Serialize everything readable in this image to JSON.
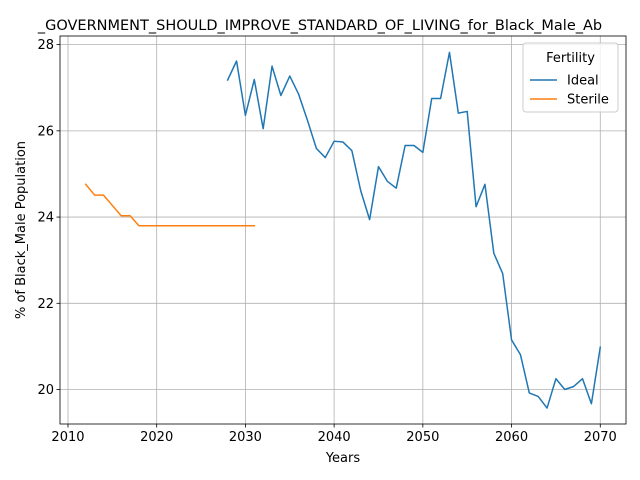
{
  "chart_data": {
    "type": "line",
    "title": "_GOVERNMENT_SHOULD_IMPROVE_STANDARD_OF_LIVING_for_Black_Male_Ab",
    "xlabel": "Years",
    "ylabel": "% of Black_Male Population",
    "xlim": [
      2009.1,
      2072.9
    ],
    "ylim": [
      19.2,
      28.2
    ],
    "xticks": [
      2010,
      2020,
      2030,
      2040,
      2050,
      2060,
      2070
    ],
    "yticks": [
      20,
      22,
      24,
      26,
      28
    ],
    "grid": true,
    "legend": {
      "title": "Fertility",
      "position": "top-right"
    },
    "series": [
      {
        "name": "Ideal",
        "color": "#1f77b4",
        "x": [
          2028,
          2029,
          2030,
          2031,
          2032,
          2033,
          2034,
          2035,
          2036,
          2037,
          2038,
          2039,
          2040,
          2041,
          2042,
          2043,
          2044,
          2045,
          2046,
          2047,
          2048,
          2049,
          2050,
          2051,
          2052,
          2053,
          2054,
          2055,
          2056,
          2057,
          2058,
          2059,
          2060,
          2061,
          2062,
          2063,
          2064,
          2065,
          2066,
          2067,
          2068,
          2069,
          2070
        ],
        "values": [
          27.18,
          27.62,
          26.36,
          27.19,
          26.05,
          27.5,
          26.82,
          27.27,
          26.85,
          26.24,
          25.59,
          25.38,
          25.76,
          25.74,
          25.54,
          24.61,
          23.94,
          25.17,
          24.83,
          24.67,
          25.66,
          25.66,
          25.5,
          26.75,
          26.75,
          27.82,
          26.41,
          26.45,
          24.24,
          24.76,
          23.16,
          22.69,
          21.15,
          20.81,
          19.92,
          19.84,
          19.57,
          20.25,
          20.0,
          20.07,
          20.25,
          19.67,
          20.98
        ]
      },
      {
        "name": "Sterile",
        "color": "#ff7f0e",
        "x": [
          2012,
          2013,
          2014,
          2015,
          2016,
          2017,
          2018,
          2019,
          2020,
          2021,
          2022,
          2023,
          2024,
          2025,
          2026,
          2027,
          2028,
          2029,
          2030,
          2031
        ],
        "values": [
          24.76,
          24.51,
          24.51,
          24.27,
          24.03,
          24.03,
          23.8,
          23.8,
          23.8,
          23.8,
          23.8,
          23.8,
          23.8,
          23.8,
          23.8,
          23.8,
          23.8,
          23.8,
          23.8,
          23.8
        ]
      }
    ]
  }
}
